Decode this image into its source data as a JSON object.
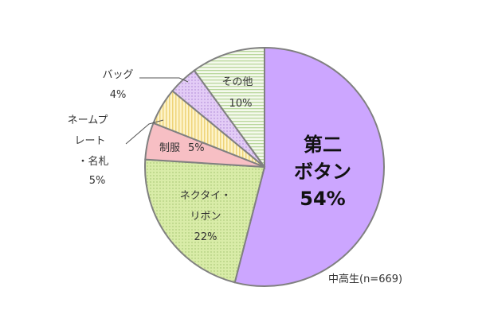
{
  "chart_data": {
    "type": "pie",
    "start": "12 o'clock, clockwise",
    "slices": [
      {
        "key": "button",
        "lines": [
          "第二",
          "ボタン"
        ],
        "value": 54,
        "value_label": "54%",
        "color": "#cca6ff",
        "pattern": "solid"
      },
      {
        "key": "necktie",
        "lines": [
          "ネクタイ・",
          "リボン"
        ],
        "value": 22,
        "value_label": "22%",
        "color": "#d9eca8",
        "pattern": "dots"
      },
      {
        "key": "uniform",
        "lines": [
          "制服"
        ],
        "value": 5,
        "value_label": "5%",
        "color": "#f7bfc4",
        "pattern": "solid"
      },
      {
        "key": "nameplate",
        "lines": [
          "ネームプ",
          "レート",
          "・名札"
        ],
        "value": 5,
        "value_label": "5%",
        "color": "#fbe8a6",
        "pattern": "vertical-stripes"
      },
      {
        "key": "bag",
        "lines": [
          "バッグ"
        ],
        "value": 4,
        "value_label": "4%",
        "color": "#e3ccf6",
        "pattern": "dots"
      },
      {
        "key": "other",
        "lines": [
          "その他"
        ],
        "value": 10,
        "value_label": "10%",
        "color": "#e9f3dc",
        "pattern": "horizontal-stripes"
      }
    ],
    "note": "中高生(n=669)"
  }
}
